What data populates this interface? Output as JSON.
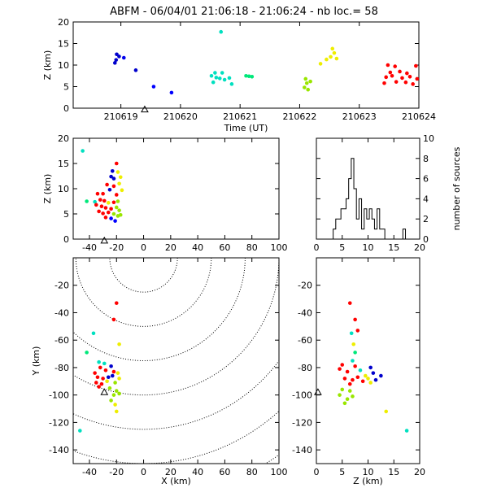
{
  "chart_data": [
    {
      "id": "time_z",
      "type": "scatter",
      "title": "ABFM - 06/04/01 21:06:18 - 21:06:24 - nb loc.=      58",
      "xlabel": "Time (UT)",
      "ylabel": "Z (km)",
      "xlim": [
        210618.2,
        210624.0
      ],
      "ylim": [
        0,
        20
      ],
      "xticks": [
        210619,
        210620,
        210621,
        210622,
        210623,
        210624
      ],
      "yticks": [
        0,
        5,
        10,
        15,
        20
      ],
      "station": {
        "x": 210619.4,
        "y": -0.3
      },
      "points": [
        {
          "x": 210618.93,
          "y": 12.5,
          "color": "#0000cc"
        },
        {
          "x": 210618.97,
          "y": 12.0,
          "color": "#0000cc"
        },
        {
          "x": 210619.05,
          "y": 11.7,
          "color": "#0000ee"
        },
        {
          "x": 210618.92,
          "y": 11.2,
          "color": "#0000cc"
        },
        {
          "x": 210618.9,
          "y": 10.5,
          "color": "#0000cc"
        },
        {
          "x": 210619.25,
          "y": 8.8,
          "color": "#0000cc"
        },
        {
          "x": 210619.55,
          "y": 5.0,
          "color": "#0000ff"
        },
        {
          "x": 210619.85,
          "y": 3.6,
          "color": "#0000ff"
        },
        {
          "x": 210620.68,
          "y": 17.7,
          "color": "#00e0c0"
        },
        {
          "x": 210620.58,
          "y": 8.2,
          "color": "#00e0c0"
        },
        {
          "x": 210620.7,
          "y": 8.2,
          "color": "#00e0c0"
        },
        {
          "x": 210620.52,
          "y": 7.5,
          "color": "#00e0c0"
        },
        {
          "x": 210620.6,
          "y": 7.1,
          "color": "#00e0c0"
        },
        {
          "x": 210620.66,
          "y": 6.9,
          "color": "#00e0c0"
        },
        {
          "x": 210620.74,
          "y": 6.6,
          "color": "#00e0c0"
        },
        {
          "x": 210620.82,
          "y": 7.0,
          "color": "#00e0c0"
        },
        {
          "x": 210620.86,
          "y": 5.6,
          "color": "#00e0c0"
        },
        {
          "x": 210620.55,
          "y": 6.0,
          "color": "#00e0c0"
        },
        {
          "x": 210621.1,
          "y": 7.5,
          "color": "#00e87a"
        },
        {
          "x": 210621.15,
          "y": 7.4,
          "color": "#00e87a"
        },
        {
          "x": 210621.2,
          "y": 7.3,
          "color": "#00e87a"
        },
        {
          "x": 210622.1,
          "y": 6.8,
          "color": "#99e600"
        },
        {
          "x": 210622.12,
          "y": 5.8,
          "color": "#99e600"
        },
        {
          "x": 210622.08,
          "y": 4.8,
          "color": "#99e600"
        },
        {
          "x": 210622.14,
          "y": 4.3,
          "color": "#99e600"
        },
        {
          "x": 210622.18,
          "y": 6.2,
          "color": "#99e600"
        },
        {
          "x": 210622.35,
          "y": 10.3,
          "color": "#eeee00"
        },
        {
          "x": 210622.45,
          "y": 11.3,
          "color": "#eeee00"
        },
        {
          "x": 210622.52,
          "y": 11.9,
          "color": "#eeee00"
        },
        {
          "x": 210622.58,
          "y": 12.8,
          "color": "#eeee00"
        },
        {
          "x": 210622.55,
          "y": 13.8,
          "color": "#eeee00"
        },
        {
          "x": 210622.62,
          "y": 11.5,
          "color": "#eeee00"
        },
        {
          "x": 210623.48,
          "y": 10.0,
          "color": "#ff0000"
        },
        {
          "x": 210623.6,
          "y": 9.7,
          "color": "#ff0000"
        },
        {
          "x": 210623.95,
          "y": 9.8,
          "color": "#ff0000"
        },
        {
          "x": 210623.52,
          "y": 8.3,
          "color": "#ff0000"
        },
        {
          "x": 210623.68,
          "y": 8.5,
          "color": "#ff0000"
        },
        {
          "x": 210623.8,
          "y": 8.1,
          "color": "#ff0000"
        },
        {
          "x": 210623.45,
          "y": 7.2,
          "color": "#ff0000"
        },
        {
          "x": 210623.55,
          "y": 7.5,
          "color": "#ff0000"
        },
        {
          "x": 210623.72,
          "y": 7.0,
          "color": "#ff0000"
        },
        {
          "x": 210623.85,
          "y": 7.3,
          "color": "#ff0000"
        },
        {
          "x": 210623.97,
          "y": 6.8,
          "color": "#ff0000"
        },
        {
          "x": 210623.62,
          "y": 6.1,
          "color": "#ff0000"
        },
        {
          "x": 210623.78,
          "y": 6.0,
          "color": "#ff0000"
        },
        {
          "x": 210623.9,
          "y": 5.6,
          "color": "#ff0000"
        },
        {
          "x": 210623.42,
          "y": 5.8,
          "color": "#ff0000"
        }
      ]
    },
    {
      "id": "x_z",
      "type": "scatter",
      "xlabel": "",
      "ylabel": "Z (km)",
      "xlim": [
        -52,
        100
      ],
      "ylim": [
        0,
        20
      ],
      "xticks": [
        -40,
        -20,
        0,
        20,
        40,
        60,
        80,
        100
      ],
      "yticks": [
        0,
        5,
        10,
        15,
        20
      ],
      "station": {
        "x": -29,
        "y": -0.3
      },
      "points": [
        {
          "x": -45,
          "y": 17.5,
          "color": "#00e0c0"
        },
        {
          "x": -20,
          "y": 15.0,
          "color": "#ff0000"
        },
        {
          "x": -23,
          "y": 13.5,
          "color": "#0000cc"
        },
        {
          "x": -19,
          "y": 13.3,
          "color": "#eeee00"
        },
        {
          "x": -24,
          "y": 12.4,
          "color": "#0000cc"
        },
        {
          "x": -22,
          "y": 12.0,
          "color": "#0000cc"
        },
        {
          "x": -17,
          "y": 12.3,
          "color": "#eeee00"
        },
        {
          "x": -18,
          "y": 11.0,
          "color": "#eeee00"
        },
        {
          "x": -27,
          "y": 10.8,
          "color": "#ff0000"
        },
        {
          "x": -22,
          "y": 10.5,
          "color": "#ff0000"
        },
        {
          "x": -25,
          "y": 9.8,
          "color": "#0000cc"
        },
        {
          "x": -16,
          "y": 9.7,
          "color": "#eeee00"
        },
        {
          "x": -34,
          "y": 9.0,
          "color": "#ff0000"
        },
        {
          "x": -30,
          "y": 9.0,
          "color": "#ff0000"
        },
        {
          "x": -20,
          "y": 8.8,
          "color": "#ff0000"
        },
        {
          "x": -42,
          "y": 7.5,
          "color": "#00e87a"
        },
        {
          "x": -36,
          "y": 7.4,
          "color": "#00e0c0"
        },
        {
          "x": -32,
          "y": 7.8,
          "color": "#ff0000"
        },
        {
          "x": -29,
          "y": 7.6,
          "color": "#ff0000"
        },
        {
          "x": -26,
          "y": 7.2,
          "color": "#eeee00"
        },
        {
          "x": -22,
          "y": 7.3,
          "color": "#ff0000"
        },
        {
          "x": -19,
          "y": 7.5,
          "color": "#99e600"
        },
        {
          "x": -35,
          "y": 6.8,
          "color": "#ff0000"
        },
        {
          "x": -31,
          "y": 6.5,
          "color": "#ff0000"
        },
        {
          "x": -28,
          "y": 6.2,
          "color": "#ff0000"
        },
        {
          "x": -24,
          "y": 6.0,
          "color": "#ff0000"
        },
        {
          "x": -20,
          "y": 6.3,
          "color": "#99e600"
        },
        {
          "x": -18,
          "y": 5.7,
          "color": "#99e600"
        },
        {
          "x": -33,
          "y": 5.5,
          "color": "#ff0000"
        },
        {
          "x": -30,
          "y": 5.1,
          "color": "#ff0000"
        },
        {
          "x": -26,
          "y": 5.3,
          "color": "#ff0000"
        },
        {
          "x": -22,
          "y": 5.0,
          "color": "#99e600"
        },
        {
          "x": -19,
          "y": 4.6,
          "color": "#99e600"
        },
        {
          "x": -28,
          "y": 4.3,
          "color": "#ff0000"
        },
        {
          "x": -24,
          "y": 4.1,
          "color": "#0000ff"
        },
        {
          "x": -21,
          "y": 3.6,
          "color": "#0000ff"
        },
        {
          "x": -17,
          "y": 4.8,
          "color": "#99e600"
        }
      ]
    },
    {
      "id": "z_hist",
      "type": "histogram",
      "xlabel": "",
      "ylabel": "number of sources",
      "xlim": [
        0,
        20
      ],
      "ylim": [
        0,
        10
      ],
      "xticks": [
        0,
        5,
        10,
        15,
        20
      ],
      "yticks": [
        0,
        2,
        4,
        6,
        8,
        10
      ],
      "bin_width": 0.5,
      "bins": [
        {
          "x": 3.5,
          "count": 1
        },
        {
          "x": 4.0,
          "count": 2
        },
        {
          "x": 4.5,
          "count": 2
        },
        {
          "x": 5.0,
          "count": 3
        },
        {
          "x": 5.5,
          "count": 3
        },
        {
          "x": 6.0,
          "count": 4
        },
        {
          "x": 6.5,
          "count": 6
        },
        {
          "x": 7.0,
          "count": 8
        },
        {
          "x": 7.5,
          "count": 5
        },
        {
          "x": 8.0,
          "count": 2
        },
        {
          "x": 8.5,
          "count": 4
        },
        {
          "x": 9.0,
          "count": 1
        },
        {
          "x": 9.5,
          "count": 3
        },
        {
          "x": 10.0,
          "count": 2
        },
        {
          "x": 10.5,
          "count": 3
        },
        {
          "x": 11.0,
          "count": 2
        },
        {
          "x": 11.5,
          "count": 1
        },
        {
          "x": 12.0,
          "count": 3
        },
        {
          "x": 12.5,
          "count": 1
        },
        {
          "x": 13.0,
          "count": 1
        },
        {
          "x": 17.0,
          "count": 1
        }
      ]
    },
    {
      "id": "x_y",
      "type": "scatter",
      "xlabel": "X (km)",
      "ylabel": "Y (km)",
      "xlim": [
        -52,
        100
      ],
      "ylim": [
        -150,
        0
      ],
      "xticks": [
        -40,
        -20,
        0,
        20,
        40,
        60,
        80,
        100
      ],
      "yticks": [
        -140,
        -120,
        -100,
        -80,
        -60,
        -40,
        -20
      ],
      "station": {
        "x": -29,
        "y": -98
      },
      "range_rings": {
        "center": [
          0,
          0
        ],
        "radii": [
          25,
          50,
          75,
          100,
          125,
          150,
          175
        ]
      },
      "points": [
        {
          "x": -20,
          "y": -33,
          "color": "#ff0000"
        },
        {
          "x": -22,
          "y": -45,
          "color": "#ff0000"
        },
        {
          "x": -37,
          "y": -55,
          "color": "#00e0c0"
        },
        {
          "x": -18,
          "y": -63,
          "color": "#eeee00"
        },
        {
          "x": -42,
          "y": -69,
          "color": "#00e87a"
        },
        {
          "x": -33,
          "y": -76,
          "color": "#00e0c0"
        },
        {
          "x": -29,
          "y": -77,
          "color": "#00e0c0"
        },
        {
          "x": -24,
          "y": -79,
          "color": "#0000cc"
        },
        {
          "x": -32,
          "y": -80,
          "color": "#ff0000"
        },
        {
          "x": -28,
          "y": -82,
          "color": "#ff0000"
        },
        {
          "x": -36,
          "y": -84,
          "color": "#ff0000"
        },
        {
          "x": -22,
          "y": -83,
          "color": "#ff0000"
        },
        {
          "x": -19,
          "y": -84,
          "color": "#eeee00"
        },
        {
          "x": -34,
          "y": -87,
          "color": "#ff0000"
        },
        {
          "x": -30,
          "y": -88,
          "color": "#ff0000"
        },
        {
          "x": -26,
          "y": -87,
          "color": "#0000cc"
        },
        {
          "x": -23,
          "y": -86,
          "color": "#0000cc"
        },
        {
          "x": -18,
          "y": -88,
          "color": "#eeee00"
        },
        {
          "x": -35,
          "y": -91,
          "color": "#ff0000"
        },
        {
          "x": -31,
          "y": -92,
          "color": "#ff0000"
        },
        {
          "x": -27,
          "y": -90,
          "color": "#eeee00"
        },
        {
          "x": -21,
          "y": -91,
          "color": "#99e600"
        },
        {
          "x": -33,
          "y": -94,
          "color": "#ff0000"
        },
        {
          "x": -25,
          "y": -95,
          "color": "#99e600"
        },
        {
          "x": -20,
          "y": -97,
          "color": "#99e600"
        },
        {
          "x": -22,
          "y": -100,
          "color": "#99e600"
        },
        {
          "x": -18,
          "y": -99,
          "color": "#99e600"
        },
        {
          "x": -24,
          "y": -104,
          "color": "#99e600"
        },
        {
          "x": -21,
          "y": -107,
          "color": "#eeee00"
        },
        {
          "x": -20,
          "y": -112,
          "color": "#eeee00"
        },
        {
          "x": -47,
          "y": -126,
          "color": "#00e0c0"
        }
      ]
    },
    {
      "id": "z_y",
      "type": "scatter",
      "xlabel": "Z (km)",
      "ylabel": "",
      "xlim": [
        0,
        20
      ],
      "ylim": [
        -150,
        0
      ],
      "xticks": [
        0,
        5,
        10,
        15,
        20
      ],
      "yticks": [
        -140,
        -120,
        -100,
        -80,
        -60,
        -40,
        -20
      ],
      "station": {
        "x": 0.3,
        "y": -98
      },
      "points": [
        {
          "x": 6.5,
          "y": -33,
          "color": "#ff0000"
        },
        {
          "x": 7.5,
          "y": -45,
          "color": "#ff0000"
        },
        {
          "x": 6.8,
          "y": -55,
          "color": "#00e0c0"
        },
        {
          "x": 8.0,
          "y": -53,
          "color": "#ff0000"
        },
        {
          "x": 7.2,
          "y": -63,
          "color": "#eeee00"
        },
        {
          "x": 7.5,
          "y": -69,
          "color": "#00e87a"
        },
        {
          "x": 7.0,
          "y": -75,
          "color": "#00e0c0"
        },
        {
          "x": 5.0,
          "y": -78,
          "color": "#ff0000"
        },
        {
          "x": 7.5,
          "y": -79,
          "color": "#ff0000"
        },
        {
          "x": 4.5,
          "y": -81,
          "color": "#ff0000"
        },
        {
          "x": 10.5,
          "y": -80,
          "color": "#0000cc"
        },
        {
          "x": 6.0,
          "y": -83,
          "color": "#ff0000"
        },
        {
          "x": 8.5,
          "y": -82,
          "color": "#00e0c0"
        },
        {
          "x": 9.5,
          "y": -86,
          "color": "#eeee00"
        },
        {
          "x": 11.0,
          "y": -84,
          "color": "#0000cc"
        },
        {
          "x": 12.5,
          "y": -86,
          "color": "#0000cc"
        },
        {
          "x": 5.5,
          "y": -88,
          "color": "#ff0000"
        },
        {
          "x": 7.0,
          "y": -89,
          "color": "#ff0000"
        },
        {
          "x": 8.0,
          "y": -87,
          "color": "#ff0000"
        },
        {
          "x": 9.0,
          "y": -90,
          "color": "#ff0000"
        },
        {
          "x": 10.0,
          "y": -88,
          "color": "#eeee00"
        },
        {
          "x": 11.5,
          "y": -89,
          "color": "#0000cc"
        },
        {
          "x": 6.5,
          "y": -92,
          "color": "#ff0000"
        },
        {
          "x": 10.5,
          "y": -91,
          "color": "#eeee00"
        },
        {
          "x": 5.0,
          "y": -96,
          "color": "#99e600"
        },
        {
          "x": 6.5,
          "y": -97,
          "color": "#99e600"
        },
        {
          "x": 4.5,
          "y": -100,
          "color": "#99e600"
        },
        {
          "x": 6.0,
          "y": -103,
          "color": "#99e600"
        },
        {
          "x": 7.0,
          "y": -101,
          "color": "#99e600"
        },
        {
          "x": 5.5,
          "y": -106,
          "color": "#99e600"
        },
        {
          "x": 13.5,
          "y": -112,
          "color": "#eeee00"
        },
        {
          "x": 17.5,
          "y": -126,
          "color": "#00e0c0"
        }
      ]
    }
  ]
}
